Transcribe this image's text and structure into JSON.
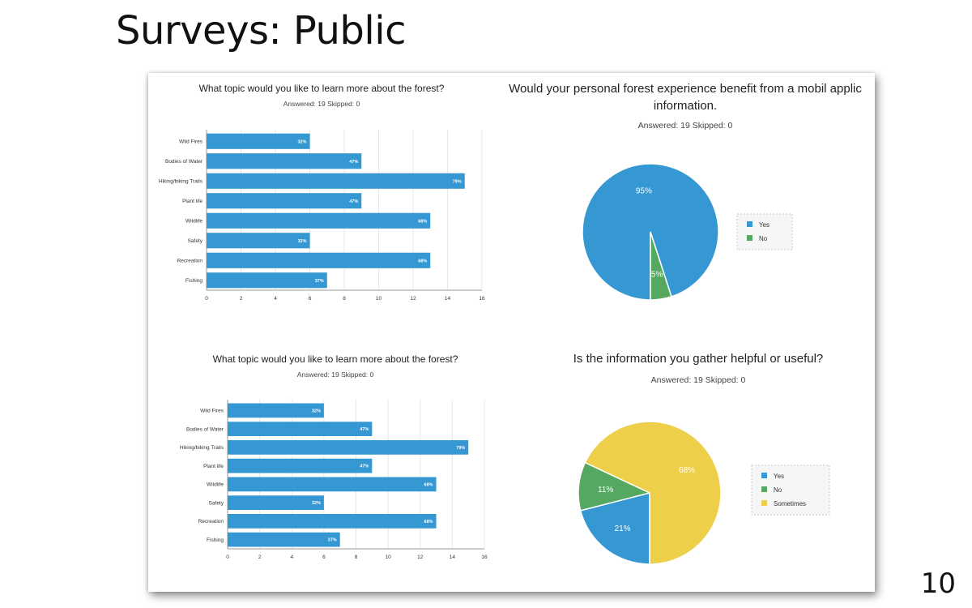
{
  "slide": {
    "title": "Surveys: Public",
    "page_number": "10"
  },
  "colors": {
    "blue": "#3598d2",
    "green": "#55a860",
    "yellow": "#eecf4a",
    "grid": "#e8e8e8",
    "axis": "#999999"
  },
  "chart_data": [
    {
      "type": "bar",
      "orientation": "horizontal",
      "title": "What topic would you like to learn more about the forest?",
      "meta": "Answered: 19    Skipped: 0",
      "categories": [
        "Wild Fires",
        "Bodies of Water",
        "Hiking/biking Trails",
        "Plant life",
        "Wildlife",
        "Safety",
        "Recreation",
        "Fishing"
      ],
      "values": [
        6,
        9,
        15,
        9,
        13,
        6,
        13,
        7
      ],
      "value_labels": [
        "32%",
        "47%",
        "79%",
        "47%",
        "68%",
        "32%",
        "68%",
        "37%"
      ],
      "xlim": [
        0,
        16
      ],
      "xticks": [
        "0",
        "2",
        "4",
        "6",
        "8",
        "10",
        "12",
        "14",
        "16"
      ],
      "grid": true
    },
    {
      "type": "pie",
      "title_lines": [
        "Would your personal forest experience benefit from a mobil applic",
        "information."
      ],
      "meta": "Answered: 19    Skipped: 0",
      "slices": [
        {
          "label": "Yes",
          "value": 95,
          "text": "95%"
        },
        {
          "label": "No",
          "value": 5,
          "text": "5%"
        }
      ],
      "legend": [
        "Yes",
        "No"
      ],
      "legend_position": "right"
    },
    {
      "type": "bar",
      "orientation": "horizontal",
      "title": "What topic would you like to learn more about the forest?",
      "meta": "Answered: 19    Skipped: 0",
      "categories": [
        "Wild Fires",
        "Bodies of Water",
        "Hiking/biking Trails",
        "Plant life",
        "Wildlife",
        "Safety",
        "Recreation",
        "Fishing"
      ],
      "values": [
        6,
        9,
        15,
        9,
        13,
        6,
        13,
        7
      ],
      "value_labels": [
        "32%",
        "47%",
        "79%",
        "47%",
        "68%",
        "32%",
        "68%",
        "37%"
      ],
      "xlim": [
        0,
        16
      ],
      "xticks": [
        "0",
        "2",
        "4",
        "6",
        "8",
        "10",
        "12",
        "14",
        "16"
      ],
      "grid": true
    },
    {
      "type": "pie",
      "title": "Is the information you gather helpful or useful?",
      "meta": "Answered: 19    Skipped: 0",
      "slices": [
        {
          "label": "Yes",
          "value": 21,
          "text": "21%"
        },
        {
          "label": "No",
          "value": 11,
          "text": "11%"
        },
        {
          "label": "Sometimes",
          "value": 68,
          "text": "68%"
        }
      ],
      "legend": [
        "Yes",
        "No",
        "Sometimes"
      ],
      "legend_position": "right"
    }
  ]
}
